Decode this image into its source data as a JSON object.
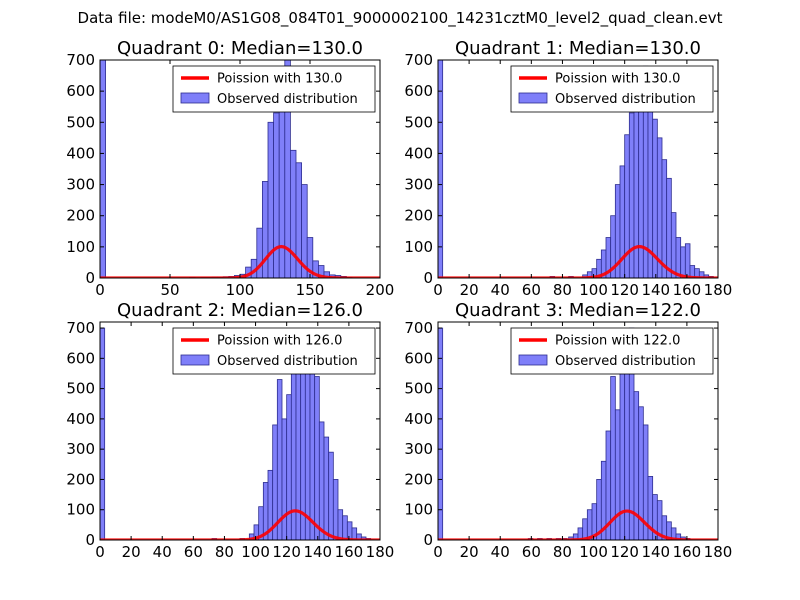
{
  "suptitle": "Data file: modeM0/AS1G08_084T01_9000002100_14231cztM0_level2_quad_clean.evt",
  "colors": {
    "hist": "#7f7ff9",
    "hist_edge": "#2d2d8f",
    "poisson": "#ff0000"
  },
  "chart_data": [
    {
      "type": "bar",
      "title": "Quadrant 0: Median=130.0",
      "median": 130.0,
      "xlim": [
        0,
        200
      ],
      "ylim": [
        0,
        700
      ],
      "xticks": [
        0,
        50,
        100,
        150,
        200
      ],
      "yticks": [
        0,
        100,
        200,
        300,
        400,
        500,
        600,
        700
      ],
      "legend": {
        "placement": "top-right",
        "entries": [
          "Poission with 130.0",
          "Observed distribution"
        ]
      },
      "bin_width": 4,
      "bins": [
        [
          0,
          700
        ],
        [
          64,
          2
        ],
        [
          68,
          1
        ],
        [
          72,
          2
        ],
        [
          76,
          2
        ],
        [
          80,
          3
        ],
        [
          84,
          3
        ],
        [
          88,
          4
        ],
        [
          92,
          5
        ],
        [
          96,
          8
        ],
        [
          100,
          12
        ],
        [
          104,
          35
        ],
        [
          108,
          60
        ],
        [
          112,
          160
        ],
        [
          116,
          310
        ],
        [
          120,
          500
        ],
        [
          124,
          530
        ],
        [
          128,
          600
        ],
        [
          132,
          700
        ],
        [
          136,
          410
        ],
        [
          140,
          370
        ],
        [
          144,
          300
        ],
        [
          148,
          130
        ],
        [
          152,
          55
        ],
        [
          156,
          40
        ],
        [
          160,
          20
        ],
        [
          164,
          10
        ],
        [
          168,
          8
        ],
        [
          172,
          5
        ],
        [
          176,
          2
        ]
      ],
      "poisson_lambda": 130.0,
      "poisson_scale": 2880
    },
    {
      "type": "bar",
      "title": "Quadrant 1: Median=130.0",
      "median": 130.0,
      "xlim": [
        0,
        180
      ],
      "ylim": [
        0,
        700
      ],
      "xticks": [
        0,
        20,
        40,
        60,
        80,
        100,
        120,
        140,
        160,
        180
      ],
      "yticks": [
        0,
        100,
        200,
        300,
        400,
        500,
        600,
        700
      ],
      "legend": {
        "placement": "top-right",
        "entries": [
          "Poission with 130.0",
          "Observed distribution"
        ]
      },
      "bin_width": 3,
      "bins": [
        [
          0,
          700
        ],
        [
          72,
          5
        ],
        [
          84,
          5
        ],
        [
          93,
          10
        ],
        [
          96,
          20
        ],
        [
          99,
          30
        ],
        [
          102,
          60
        ],
        [
          105,
          90
        ],
        [
          108,
          130
        ],
        [
          111,
          200
        ],
        [
          114,
          300
        ],
        [
          117,
          360
        ],
        [
          120,
          460
        ],
        [
          123,
          530
        ],
        [
          126,
          540
        ],
        [
          129,
          620
        ],
        [
          132,
          680
        ],
        [
          135,
          640
        ],
        [
          138,
          510
        ],
        [
          141,
          450
        ],
        [
          144,
          380
        ],
        [
          147,
          320
        ],
        [
          150,
          210
        ],
        [
          153,
          130
        ],
        [
          156,
          100
        ],
        [
          159,
          110
        ],
        [
          162,
          40
        ],
        [
          165,
          30
        ],
        [
          168,
          20
        ],
        [
          171,
          10
        ],
        [
          174,
          5
        ]
      ],
      "poisson_lambda": 130.0,
      "poisson_scale": 2880
    },
    {
      "type": "bar",
      "title": "Quadrant 2: Median=126.0",
      "median": 126.0,
      "xlim": [
        0,
        180
      ],
      "ylim": [
        0,
        720
      ],
      "xticks": [
        0,
        20,
        40,
        60,
        80,
        100,
        120,
        140,
        160,
        180
      ],
      "yticks": [
        0,
        100,
        200,
        300,
        400,
        500,
        600,
        700
      ],
      "legend": {
        "placement": "top-right",
        "entries": [
          "Poission with 126.0",
          "Observed distribution"
        ]
      },
      "bin_width": 3,
      "bins": [
        [
          0,
          700
        ],
        [
          72,
          5
        ],
        [
          90,
          5
        ],
        [
          96,
          20
        ],
        [
          99,
          50
        ],
        [
          102,
          110
        ],
        [
          105,
          190
        ],
        [
          108,
          230
        ],
        [
          111,
          380
        ],
        [
          114,
          530
        ],
        [
          117,
          400
        ],
        [
          120,
          480
        ],
        [
          123,
          600
        ],
        [
          126,
          640
        ],
        [
          129,
          640
        ],
        [
          132,
          680
        ],
        [
          135,
          660
        ],
        [
          138,
          540
        ],
        [
          141,
          390
        ],
        [
          144,
          340
        ],
        [
          147,
          290
        ],
        [
          150,
          200
        ],
        [
          153,
          100
        ],
        [
          156,
          80
        ],
        [
          159,
          60
        ],
        [
          162,
          40
        ],
        [
          165,
          20
        ],
        [
          168,
          10
        ],
        [
          171,
          5
        ]
      ],
      "poisson_lambda": 126.0,
      "poisson_scale": 2710
    },
    {
      "type": "bar",
      "title": "Quadrant 3: Median=122.0",
      "median": 122.0,
      "xlim": [
        0,
        180
      ],
      "ylim": [
        0,
        720
      ],
      "xticks": [
        0,
        20,
        40,
        60,
        80,
        100,
        120,
        140,
        160,
        180
      ],
      "yticks": [
        0,
        100,
        200,
        300,
        400,
        500,
        600,
        700
      ],
      "legend": {
        "placement": "top-right",
        "entries": [
          "Poission with 122.0",
          "Observed distribution"
        ]
      },
      "bin_width": 3,
      "bins": [
        [
          0,
          700
        ],
        [
          58,
          5
        ],
        [
          64,
          5
        ],
        [
          70,
          5
        ],
        [
          76,
          5
        ],
        [
          80,
          5
        ],
        [
          84,
          10
        ],
        [
          87,
          20
        ],
        [
          90,
          40
        ],
        [
          93,
          70
        ],
        [
          96,
          100
        ],
        [
          99,
          120
        ],
        [
          102,
          200
        ],
        [
          105,
          260
        ],
        [
          108,
          360
        ],
        [
          111,
          540
        ],
        [
          114,
          430
        ],
        [
          117,
          560
        ],
        [
          120,
          690
        ],
        [
          123,
          700
        ],
        [
          126,
          490
        ],
        [
          129,
          440
        ],
        [
          132,
          380
        ],
        [
          135,
          210
        ],
        [
          138,
          150
        ],
        [
          141,
          130
        ],
        [
          144,
          80
        ],
        [
          147,
          60
        ],
        [
          150,
          40
        ],
        [
          153,
          20
        ],
        [
          156,
          10
        ],
        [
          159,
          5
        ]
      ],
      "poisson_lambda": 122.0,
      "poisson_scale": 2650
    }
  ]
}
